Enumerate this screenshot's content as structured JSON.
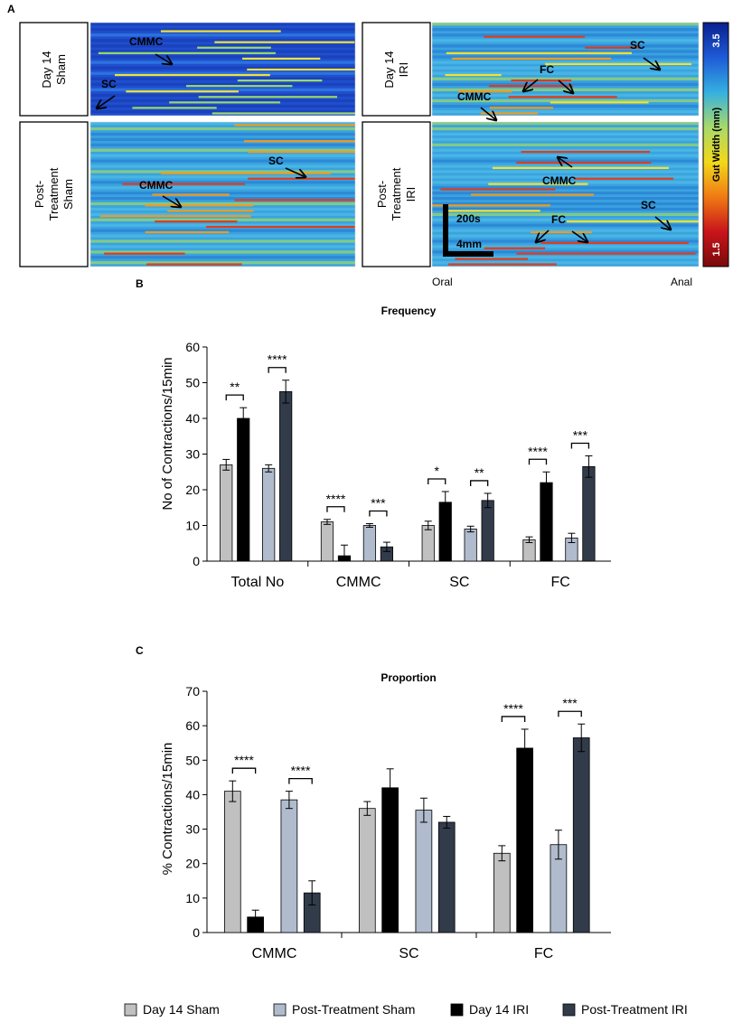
{
  "figure": {
    "panel_a_label": "A",
    "panel_b_label": "B",
    "panel_c_label": "C"
  },
  "spatiotemporal_maps": {
    "rows": [
      {
        "title_lines": [
          "Day 14",
          "Sham"
        ],
        "arrows": [
          "CMMC",
          "SC"
        ]
      },
      {
        "title_lines": [
          "Day 14",
          "IRI"
        ],
        "arrows": [
          "SC",
          "FC",
          "CMMC"
        ]
      },
      {
        "title_lines": [
          "Post-",
          "Treatment",
          "Sham"
        ],
        "arrows": [
          "SC",
          "CMMC"
        ]
      },
      {
        "title_lines": [
          "Post-",
          "Treatment",
          "IRI"
        ],
        "arrows": [
          "CMMC",
          "SC",
          "FC"
        ]
      }
    ],
    "scale_time": "200s",
    "scale_length": "4mm",
    "axis_oral": "Oral",
    "axis_anal": "Anal",
    "colorbar": {
      "label": "Gut Width (mm)",
      "max": "3.5",
      "min": "1.5",
      "colors": [
        "#0a1f8f",
        "#1e5bd6",
        "#35b0e0",
        "#a8d96a",
        "#f2d81a",
        "#f07a14",
        "#c8141a",
        "#7a0a0a"
      ]
    }
  },
  "legend": {
    "items": [
      {
        "label": "Day 14 Sham",
        "color": "#c0c0c0"
      },
      {
        "label": "Post-Treatment Sham",
        "color": "#b0bccd"
      },
      {
        "label": "Day 14 IRI",
        "color": "#000000"
      },
      {
        "label": "Post-Treatment IRI",
        "color": "#323b4a"
      }
    ]
  },
  "chart_data": [
    {
      "type": "bar",
      "title": "Frequency",
      "ylabel": "No of Contractions/15min",
      "xlabel": "",
      "ylim": [
        0,
        60
      ],
      "yticks": [
        0,
        10,
        20,
        30,
        40,
        50,
        60
      ],
      "grid": false,
      "categories": [
        "Total No",
        "CMMC",
        "SC",
        "FC"
      ],
      "series": [
        {
          "name": "Day 14 Sham",
          "color": "#c0c0c0",
          "values": [
            27,
            11,
            10,
            6
          ],
          "errors": [
            1.5,
            0.7,
            1.2,
            0.8
          ]
        },
        {
          "name": "Day 14 IRI",
          "color": "#000000",
          "values": [
            40,
            1.5,
            16.5,
            22
          ],
          "errors": [
            3,
            3,
            3,
            3
          ]
        },
        {
          "name": "Post-Treatment Sham",
          "color": "#b0bccd",
          "values": [
            26,
            10,
            9,
            6.5
          ],
          "errors": [
            1,
            0.5,
            0.8,
            1.3
          ]
        },
        {
          "name": "Post-Treatment IRI",
          "color": "#323b4a",
          "values": [
            47.5,
            4,
            17,
            26.5
          ],
          "errors": [
            3.2,
            1.3,
            2,
            3
          ]
        }
      ],
      "significance": [
        {
          "category": "Total No",
          "pair": "Day 14",
          "label": "**"
        },
        {
          "category": "Total No",
          "pair": "Post-Treatment",
          "label": "****"
        },
        {
          "category": "CMMC",
          "pair": "Day 14",
          "label": "****"
        },
        {
          "category": "CMMC",
          "pair": "Post-Treatment",
          "label": "***"
        },
        {
          "category": "SC",
          "pair": "Day 14",
          "label": "*"
        },
        {
          "category": "SC",
          "pair": "Post-Treatment",
          "label": "**"
        },
        {
          "category": "FC",
          "pair": "Day 14",
          "label": "****"
        },
        {
          "category": "FC",
          "pair": "Post-Treatment",
          "label": "***"
        }
      ]
    },
    {
      "type": "bar",
      "title": "Proportion",
      "ylabel": "% Contractions/15min",
      "xlabel": "",
      "ylim": [
        0,
        70
      ],
      "yticks": [
        0,
        10,
        20,
        30,
        40,
        50,
        60,
        70
      ],
      "grid": false,
      "categories": [
        "CMMC",
        "SC",
        "FC"
      ],
      "series": [
        {
          "name": "Day 14 Sham",
          "color": "#c0c0c0",
          "values": [
            41,
            36,
            23
          ],
          "errors": [
            3,
            2,
            2.2
          ]
        },
        {
          "name": "Day 14 IRI",
          "color": "#000000",
          "values": [
            4.5,
            42,
            53.5
          ],
          "errors": [
            2,
            5.5,
            5.5
          ]
        },
        {
          "name": "Post-Treatment Sham",
          "color": "#b0bccd",
          "values": [
            38.5,
            35.5,
            25.5
          ],
          "errors": [
            2.5,
            3.5,
            4.2
          ]
        },
        {
          "name": "Post-Treatment IRI",
          "color": "#323b4a",
          "values": [
            11.5,
            32,
            56.5
          ],
          "errors": [
            3.5,
            1.7,
            4
          ]
        }
      ],
      "significance": [
        {
          "category": "CMMC",
          "pair": "Day 14",
          "label": "****"
        },
        {
          "category": "CMMC",
          "pair": "Post-Treatment",
          "label": "****"
        },
        {
          "category": "FC",
          "pair": "Day 14",
          "label": "****"
        },
        {
          "category": "FC",
          "pair": "Post-Treatment",
          "label": "***"
        }
      ]
    }
  ]
}
